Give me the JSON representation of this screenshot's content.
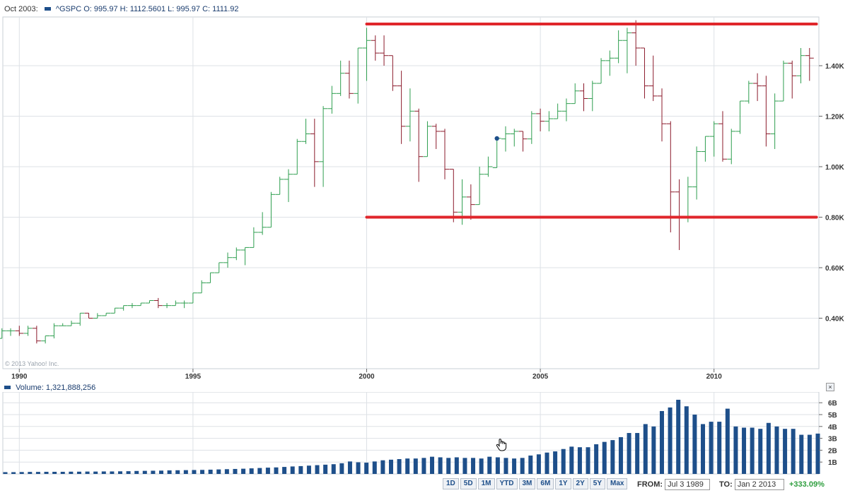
{
  "legend": {
    "date": "Oct 2003:",
    "symbol": "^GSPC",
    "open_label": "O:",
    "open": "995.97",
    "high_label": "H:",
    "high": "1112.5601",
    "low_label": "L:",
    "low": "995.97",
    "close_label": "C:",
    "close": "1111.92"
  },
  "watermark": "© 2013 Yahoo! Inc.",
  "volume_legend": {
    "label": "Volume:",
    "value": "1,321,888,256"
  },
  "close_glyph": "×",
  "ranges": [
    "1D",
    "5D",
    "1M",
    "YTD",
    "3M",
    "6M",
    "1Y",
    "2Y",
    "5Y",
    "Max"
  ],
  "from_label": "FROM:",
  "from_value": "Jul 3 1989",
  "to_label": "TO:",
  "to_value": "Jan 2 2013",
  "change": "+333.09%",
  "colors": {
    "up": "#2e9e4f",
    "down": "#8b1a2b",
    "trendline": "#e0262b",
    "volume": "#1e4f8a"
  },
  "chart_data": [
    {
      "type": "ohlc",
      "x_ticks": [
        "1990",
        "1995",
        "2000",
        "2005",
        "2010"
      ],
      "y_ticks": [
        "0.40K",
        "0.60K",
        "0.80K",
        "1.00K",
        "1.20K",
        "1.40K"
      ],
      "x_range": [
        1989.5,
        2013.0
      ],
      "y_range": [
        0.245,
        1.59
      ],
      "y_unit": "K",
      "series": [
        [
          1989.5,
          0.32,
          0.36,
          0.32,
          0.35
        ],
        [
          1989.75,
          0.35,
          0.36,
          0.33,
          0.35
        ],
        [
          1990.0,
          0.35,
          0.37,
          0.33,
          0.34
        ],
        [
          1990.25,
          0.34,
          0.37,
          0.33,
          0.36
        ],
        [
          1990.5,
          0.36,
          0.37,
          0.3,
          0.31
        ],
        [
          1990.75,
          0.31,
          0.33,
          0.3,
          0.33
        ],
        [
          1991.0,
          0.33,
          0.38,
          0.32,
          0.37
        ],
        [
          1991.25,
          0.37,
          0.38,
          0.37,
          0.37
        ],
        [
          1991.5,
          0.37,
          0.39,
          0.37,
          0.38
        ],
        [
          1991.75,
          0.38,
          0.42,
          0.37,
          0.42
        ],
        [
          1992.0,
          0.42,
          0.42,
          0.4,
          0.4
        ],
        [
          1992.25,
          0.4,
          0.42,
          0.4,
          0.41
        ],
        [
          1992.5,
          0.41,
          0.42,
          0.41,
          0.42
        ],
        [
          1992.75,
          0.42,
          0.44,
          0.42,
          0.44
        ],
        [
          1993.0,
          0.44,
          0.45,
          0.43,
          0.45
        ],
        [
          1993.25,
          0.45,
          0.46,
          0.44,
          0.45
        ],
        [
          1993.5,
          0.45,
          0.46,
          0.45,
          0.46
        ],
        [
          1993.75,
          0.46,
          0.47,
          0.46,
          0.47
        ],
        [
          1994.0,
          0.47,
          0.48,
          0.44,
          0.45
        ],
        [
          1994.25,
          0.45,
          0.46,
          0.44,
          0.45
        ],
        [
          1994.5,
          0.45,
          0.47,
          0.45,
          0.46
        ],
        [
          1994.75,
          0.46,
          0.47,
          0.44,
          0.46
        ],
        [
          1995.0,
          0.46,
          0.5,
          0.46,
          0.5
        ],
        [
          1995.25,
          0.5,
          0.55,
          0.5,
          0.54
        ],
        [
          1995.5,
          0.54,
          0.58,
          0.54,
          0.58
        ],
        [
          1995.75,
          0.58,
          0.62,
          0.58,
          0.62
        ],
        [
          1996.0,
          0.62,
          0.66,
          0.6,
          0.64
        ],
        [
          1996.25,
          0.64,
          0.68,
          0.63,
          0.67
        ],
        [
          1996.5,
          0.67,
          0.68,
          0.61,
          0.68
        ],
        [
          1996.75,
          0.68,
          0.76,
          0.68,
          0.74
        ],
        [
          1997.0,
          0.74,
          0.82,
          0.73,
          0.76
        ],
        [
          1997.25,
          0.76,
          0.9,
          0.76,
          0.89
        ],
        [
          1997.5,
          0.89,
          0.96,
          0.89,
          0.95
        ],
        [
          1997.75,
          0.95,
          0.99,
          0.86,
          0.97
        ],
        [
          1998.0,
          0.97,
          1.11,
          0.97,
          1.1
        ],
        [
          1998.25,
          1.1,
          1.19,
          1.09,
          1.13
        ],
        [
          1998.5,
          1.13,
          1.19,
          0.92,
          1.02
        ],
        [
          1998.75,
          1.02,
          1.24,
          0.92,
          1.23
        ],
        [
          1999.0,
          1.23,
          1.32,
          1.21,
          1.29
        ],
        [
          1999.25,
          1.29,
          1.42,
          1.28,
          1.37
        ],
        [
          1999.5,
          1.37,
          1.42,
          1.27,
          1.29
        ],
        [
          1999.75,
          1.29,
          1.47,
          1.25,
          1.47
        ],
        [
          2000.0,
          1.47,
          1.55,
          1.34,
          1.5
        ],
        [
          2000.25,
          1.5,
          1.52,
          1.42,
          1.45
        ],
        [
          2000.5,
          1.45,
          1.52,
          1.4,
          1.44
        ],
        [
          2000.75,
          1.44,
          1.44,
          1.3,
          1.32
        ],
        [
          2001.0,
          1.32,
          1.38,
          1.09,
          1.16
        ],
        [
          2001.25,
          1.16,
          1.31,
          1.1,
          1.22
        ],
        [
          2001.5,
          1.22,
          1.23,
          0.94,
          1.04
        ],
        [
          2001.75,
          1.04,
          1.18,
          1.04,
          1.16
        ],
        [
          2002.0,
          1.16,
          1.17,
          1.07,
          1.14
        ],
        [
          2002.25,
          1.14,
          1.15,
          0.95,
          0.99
        ],
        [
          2002.5,
          0.99,
          0.99,
          0.78,
          0.82
        ],
        [
          2002.75,
          0.82,
          0.95,
          0.77,
          0.88
        ],
        [
          2003.0,
          0.88,
          0.93,
          0.79,
          0.85
        ],
        [
          2003.25,
          0.85,
          1.0,
          0.85,
          0.97
        ],
        [
          2003.5,
          0.97,
          1.04,
          0.96,
          1.0
        ],
        [
          2003.75,
          0.996,
          1.1126,
          0.996,
          1.112
        ],
        [
          2004.0,
          1.11,
          1.16,
          1.06,
          1.13
        ],
        [
          2004.25,
          1.13,
          1.15,
          1.08,
          1.14
        ],
        [
          2004.5,
          1.14,
          1.14,
          1.06,
          1.11
        ],
        [
          2004.75,
          1.11,
          1.22,
          1.09,
          1.21
        ],
        [
          2005.0,
          1.21,
          1.23,
          1.14,
          1.18
        ],
        [
          2005.25,
          1.18,
          1.22,
          1.14,
          1.19
        ],
        [
          2005.5,
          1.19,
          1.25,
          1.19,
          1.22
        ],
        [
          2005.75,
          1.22,
          1.27,
          1.18,
          1.25
        ],
        [
          2006.0,
          1.25,
          1.33,
          1.25,
          1.3
        ],
        [
          2006.25,
          1.3,
          1.33,
          1.22,
          1.27
        ],
        [
          2006.5,
          1.27,
          1.34,
          1.22,
          1.33
        ],
        [
          2006.75,
          1.33,
          1.43,
          1.33,
          1.42
        ],
        [
          2007.0,
          1.42,
          1.46,
          1.36,
          1.43
        ],
        [
          2007.25,
          1.43,
          1.54,
          1.41,
          1.5
        ],
        [
          2007.5,
          1.5,
          1.55,
          1.37,
          1.53
        ],
        [
          2007.75,
          1.53,
          1.58,
          1.4,
          1.47
        ],
        [
          2008.0,
          1.47,
          1.47,
          1.27,
          1.32
        ],
        [
          2008.25,
          1.32,
          1.44,
          1.26,
          1.28
        ],
        [
          2008.5,
          1.28,
          1.31,
          1.1,
          1.17
        ],
        [
          2008.75,
          1.17,
          1.18,
          0.74,
          0.9
        ],
        [
          2009.0,
          0.9,
          0.95,
          0.67,
          0.8
        ],
        [
          2009.25,
          0.8,
          0.96,
          0.78,
          0.92
        ],
        [
          2009.5,
          0.92,
          1.08,
          0.87,
          1.06
        ],
        [
          2009.75,
          1.06,
          1.12,
          1.02,
          1.12
        ],
        [
          2010.0,
          1.12,
          1.18,
          1.04,
          1.17
        ],
        [
          2010.25,
          1.17,
          1.22,
          1.02,
          1.03
        ],
        [
          2010.5,
          1.03,
          1.15,
          1.01,
          1.14
        ],
        [
          2010.75,
          1.14,
          1.26,
          1.13,
          1.26
        ],
        [
          2011.0,
          1.26,
          1.34,
          1.25,
          1.33
        ],
        [
          2011.25,
          1.33,
          1.37,
          1.26,
          1.32
        ],
        [
          2011.5,
          1.32,
          1.36,
          1.08,
          1.13
        ],
        [
          2011.75,
          1.13,
          1.29,
          1.07,
          1.26
        ],
        [
          2012.0,
          1.26,
          1.42,
          1.26,
          1.41
        ],
        [
          2012.25,
          1.41,
          1.42,
          1.27,
          1.36
        ],
        [
          2012.5,
          1.36,
          1.47,
          1.33,
          1.44
        ],
        [
          2012.75,
          1.44,
          1.47,
          1.34,
          1.43
        ]
      ],
      "trendlines": [
        {
          "y": 1.565,
          "x_start": 2000.0,
          "x_end": 2012.95
        },
        {
          "y": 0.8,
          "x_start": 2000.0,
          "x_end": 2012.95
        }
      ],
      "marker": {
        "x": 2003.75,
        "y": 1.112
      }
    },
    {
      "type": "bar",
      "y_ticks": [
        "1B",
        "2B",
        "3B",
        "4B",
        "5B",
        "6B"
      ],
      "y_range": [
        0,
        6.8
      ],
      "y_unit": "B",
      "values": [
        0.15,
        0.15,
        0.16,
        0.17,
        0.17,
        0.18,
        0.18,
        0.18,
        0.19,
        0.19,
        0.2,
        0.2,
        0.21,
        0.21,
        0.22,
        0.23,
        0.25,
        0.26,
        0.27,
        0.28,
        0.3,
        0.31,
        0.32,
        0.33,
        0.34,
        0.36,
        0.38,
        0.4,
        0.42,
        0.44,
        0.47,
        0.5,
        0.53,
        0.55,
        0.59,
        0.63,
        0.66,
        0.7,
        0.74,
        0.78,
        0.82,
        0.9,
        1.05,
        0.98,
        0.95,
        1.05,
        1.15,
        1.2,
        1.25,
        1.3,
        1.3,
        1.35,
        1.45,
        1.4,
        1.35,
        1.4,
        1.35,
        1.35,
        1.3,
        1.45,
        1.4,
        1.35,
        1.3,
        1.35,
        1.55,
        1.65,
        1.8,
        1.9,
        2.1,
        2.3,
        2.25,
        2.25,
        2.5,
        2.7,
        2.85,
        3.1,
        3.45,
        3.45,
        4.2,
        4.0,
        5.3,
        5.6,
        6.25,
        5.7,
        5.0,
        4.2,
        4.4,
        4.4,
        5.5,
        4.0,
        3.9,
        3.9,
        3.8,
        4.3,
        4.0,
        3.8,
        3.8,
        3.3,
        3.3,
        3.4
      ]
    }
  ]
}
